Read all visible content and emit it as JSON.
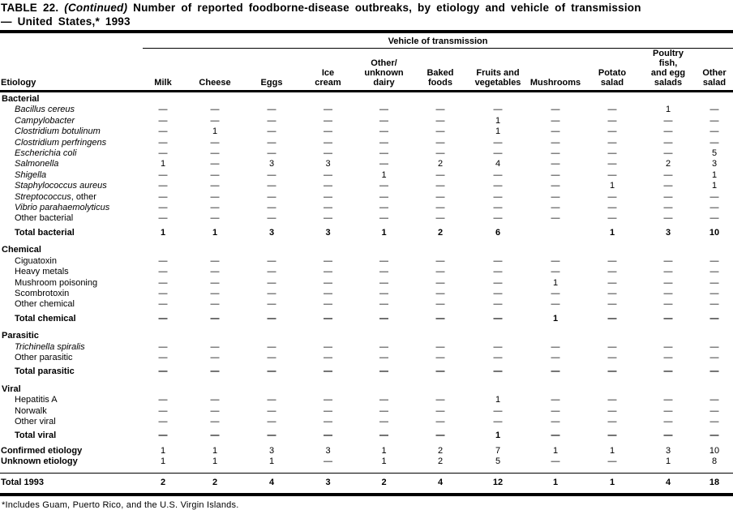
{
  "title": {
    "line1_prefix": "TABLE 22.",
    "line1_continued": "(Continued)",
    "line1_rest": "Number of reported foodborne-disease outbreaks, by etiology and vehicle of transmission",
    "line2": "— United States,* 1993"
  },
  "table": {
    "group_header": "Vehicle of transmission",
    "etiology_header": "Etiology",
    "columns": [
      "Milk",
      "Cheese",
      "Eggs",
      "Ice\ncream",
      "Other/\nunknown\ndairy",
      "Baked\nfoods",
      "Fruits and\nvegetables",
      "Mushrooms",
      "Potato\nsalad",
      "Poultry\nfish,\nand egg\nsalads",
      "Other\nsalad"
    ],
    "rows": [
      {
        "type": "section",
        "label": "Bacterial"
      },
      {
        "type": "item",
        "italic": true,
        "label": "Bacillus cereus",
        "cells": [
          "—",
          "—",
          "—",
          "—",
          "—",
          "—",
          "—",
          "—",
          "—",
          "1",
          "—"
        ]
      },
      {
        "type": "item",
        "italic": true,
        "label": "Campylobacter",
        "cells": [
          "—",
          "—",
          "—",
          "—",
          "—",
          "—",
          "1",
          "—",
          "—",
          "—",
          "—"
        ]
      },
      {
        "type": "item",
        "italic": true,
        "label": "Clostridium botulinum",
        "cells": [
          "—",
          "1",
          "—",
          "—",
          "—",
          "—",
          "1",
          "—",
          "—",
          "—",
          "—"
        ]
      },
      {
        "type": "item",
        "italic": true,
        "label": "Clostridium perfringens",
        "cells": [
          "—",
          "—",
          "—",
          "—",
          "—",
          "—",
          "—",
          "—",
          "—",
          "—",
          "—"
        ]
      },
      {
        "type": "item",
        "italic": true,
        "label": "Escherichia coli",
        "cells": [
          "—",
          "—",
          "—",
          "—",
          "—",
          "—",
          "—",
          "—",
          "—",
          "—",
          "5"
        ]
      },
      {
        "type": "item",
        "italic": true,
        "label": "Salmonella",
        "cells": [
          "1",
          "—",
          "3",
          "3",
          "—",
          "2",
          "4",
          "—",
          "—",
          "2",
          "3"
        ]
      },
      {
        "type": "item",
        "italic": true,
        "label": "Shigella",
        "cells": [
          "—",
          "—",
          "—",
          "—",
          "1",
          "—",
          "—",
          "—",
          "—",
          "—",
          "1"
        ]
      },
      {
        "type": "item",
        "italic": true,
        "label": "Staphylococcus aureus",
        "cells": [
          "—",
          "—",
          "—",
          "—",
          "—",
          "—",
          "—",
          "—",
          "1",
          "—",
          "1"
        ]
      },
      {
        "type": "item",
        "italic": true,
        "label": "Streptococcus",
        "suffix": ", other",
        "cells": [
          "—",
          "—",
          "—",
          "—",
          "—",
          "—",
          "—",
          "—",
          "—",
          "—",
          "—"
        ]
      },
      {
        "type": "item",
        "italic": true,
        "label": "Vibrio parahaemolyticus",
        "cells": [
          "—",
          "—",
          "—",
          "—",
          "—",
          "—",
          "—",
          "—",
          "—",
          "—",
          "—"
        ]
      },
      {
        "type": "item",
        "italic": false,
        "label": "Other bacterial",
        "cells": [
          "—",
          "—",
          "—",
          "—",
          "—",
          "—",
          "—",
          "—",
          "—",
          "—",
          "—"
        ]
      },
      {
        "type": "total",
        "label": "Total bacterial",
        "cells": [
          "1",
          "1",
          "3",
          "3",
          "1",
          "2",
          "6",
          "",
          "1",
          "3",
          "10"
        ]
      },
      {
        "type": "section",
        "label": "Chemical"
      },
      {
        "type": "item",
        "italic": false,
        "label": "Ciguatoxin",
        "cells": [
          "—",
          "—",
          "—",
          "—",
          "—",
          "—",
          "—",
          "—",
          "—",
          "—",
          "—"
        ]
      },
      {
        "type": "item",
        "italic": false,
        "label": "Heavy metals",
        "cells": [
          "—",
          "—",
          "—",
          "—",
          "—",
          "—",
          "—",
          "—",
          "—",
          "—",
          "—"
        ]
      },
      {
        "type": "item",
        "italic": false,
        "label": "Mushroom poisoning",
        "cells": [
          "—",
          "—",
          "—",
          "—",
          "—",
          "—",
          "—",
          "1",
          "—",
          "—",
          "—"
        ]
      },
      {
        "type": "item",
        "italic": false,
        "label": "Scombrotoxin",
        "cells": [
          "—",
          "—",
          "—",
          "—",
          "—",
          "—",
          "—",
          "—",
          "—",
          "—",
          "—"
        ]
      },
      {
        "type": "item",
        "italic": false,
        "label": "Other chemical",
        "cells": [
          "—",
          "—",
          "—",
          "—",
          "—",
          "—",
          "—",
          "—",
          "—",
          "—",
          "—"
        ]
      },
      {
        "type": "total",
        "label": "Total chemical",
        "cells": [
          "—",
          "—",
          "—",
          "—",
          "—",
          "—",
          "—",
          "1",
          "—",
          "—",
          "—"
        ]
      },
      {
        "type": "section",
        "label": "Parasitic"
      },
      {
        "type": "item",
        "italic": true,
        "label": "Trichinella spiralis",
        "cells": [
          "—",
          "—",
          "—",
          "—",
          "—",
          "—",
          "—",
          "—",
          "—",
          "—",
          "—"
        ]
      },
      {
        "type": "item",
        "italic": false,
        "label": "Other parasitic",
        "cells": [
          "—",
          "—",
          "—",
          "—",
          "—",
          "—",
          "—",
          "—",
          "—",
          "—",
          "—"
        ]
      },
      {
        "type": "total",
        "label": "Total parasitic",
        "cells": [
          "—",
          "—",
          "—",
          "—",
          "—",
          "—",
          "—",
          "—",
          "—",
          "—",
          "—"
        ]
      },
      {
        "type": "section",
        "label": "Viral"
      },
      {
        "type": "item",
        "italic": false,
        "label": "Hepatitis A",
        "cells": [
          "—",
          "—",
          "—",
          "—",
          "—",
          "—",
          "1",
          "—",
          "—",
          "—",
          "—"
        ]
      },
      {
        "type": "item",
        "italic": false,
        "label": "Norwalk",
        "cells": [
          "—",
          "—",
          "—",
          "—",
          "—",
          "—",
          "—",
          "—",
          "—",
          "—",
          "—"
        ]
      },
      {
        "type": "item",
        "italic": false,
        "label": "Other viral",
        "cells": [
          "—",
          "—",
          "—",
          "—",
          "—",
          "—",
          "—",
          "—",
          "—",
          "—",
          "—"
        ]
      },
      {
        "type": "total",
        "label": "Total viral",
        "cells": [
          "—",
          "—",
          "—",
          "—",
          "—",
          "—",
          "1",
          "—",
          "—",
          "—",
          "—"
        ]
      },
      {
        "type": "summary",
        "label": "Confirmed etiology",
        "cells": [
          "1",
          "1",
          "3",
          "3",
          "1",
          "2",
          "7",
          "1",
          "1",
          "3",
          "10"
        ]
      },
      {
        "type": "summary",
        "label": "Unknown etiology",
        "cells": [
          "1",
          "1",
          "1",
          "—",
          "1",
          "2",
          "5",
          "—",
          "—",
          "1",
          "8"
        ]
      },
      {
        "type": "grand",
        "label": "Total 1993",
        "cells": [
          "2",
          "2",
          "4",
          "3",
          "2",
          "4",
          "12",
          "1",
          "1",
          "4",
          "18"
        ]
      }
    ]
  },
  "footnote": "*Includes Guam, Puerto Rico, and the U.S. Virgin Islands."
}
